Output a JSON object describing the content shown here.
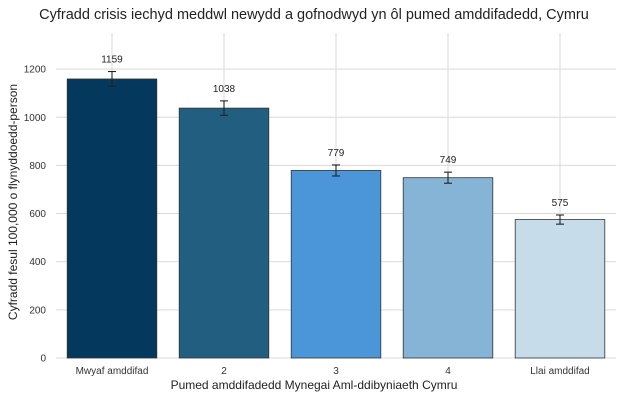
{
  "chart_data": {
    "type": "bar",
    "title": "Cyfradd crisis iechyd meddwl newydd a gofnodwyd yn ôl pumed amddifadedd, Cymru",
    "xlabel": "Pumed amddifadedd Mynegai Aml-ddibyniaeth Cymru",
    "ylabel": "Cyfradd fesul 100,000 o flynyddoedd-person",
    "categories": [
      "Mwyaf amddifad",
      "2",
      "3",
      "4",
      "Llai amddifad"
    ],
    "values": [
      1159,
      1038,
      779,
      749,
      575
    ],
    "value_labels": [
      "1159",
      "1038",
      "779",
      "749",
      "575"
    ],
    "error_low": [
      1128,
      1008,
      756,
      726,
      556
    ],
    "error_high": [
      1190,
      1068,
      802,
      772,
      594
    ],
    "colors": [
      "#04385c",
      "#215e80",
      "#4a96d9",
      "#86b4d7",
      "#c6dcea"
    ],
    "ylim": [
      0,
      1350
    ],
    "yticks": [
      0,
      200,
      400,
      600,
      800,
      1000,
      1200
    ],
    "ytick_labels": [
      "0",
      "200",
      "400",
      "600",
      "800",
      "1000",
      "1200"
    ],
    "grid": true,
    "legend": "none"
  }
}
